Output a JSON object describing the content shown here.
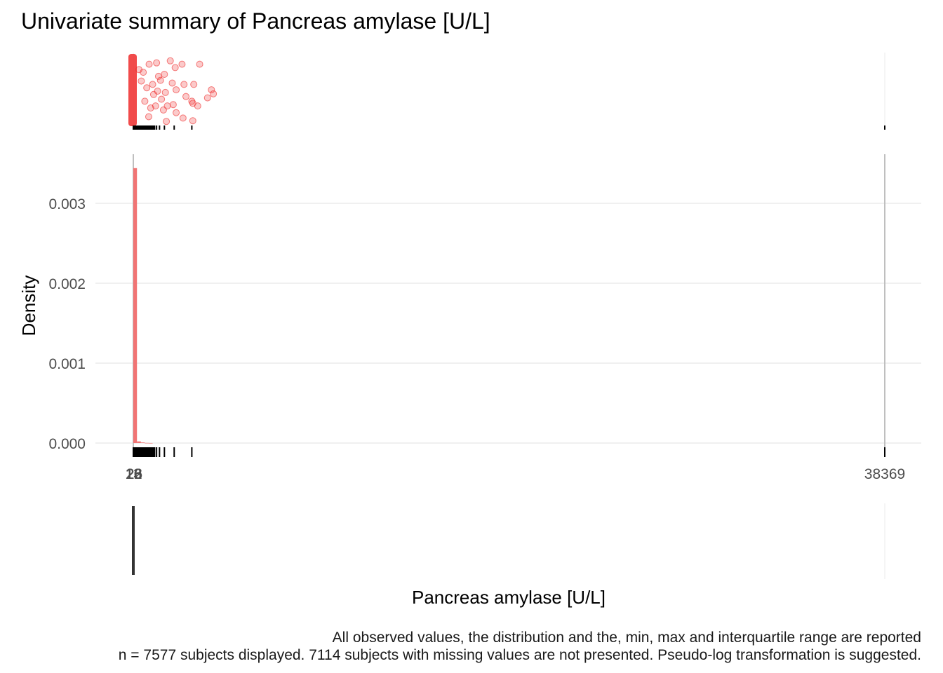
{
  "chart_data": {
    "type": "histogram",
    "title": "Univariate summary of Pancreas amylase [U/L]",
    "xlabel": "Pancreas amylase [U/L]",
    "ylabel": "Density",
    "x_tick_labels": [
      "13",
      "16",
      "22",
      "26",
      "38369"
    ],
    "x_range": [
      13,
      38369
    ],
    "ylim": [
      0,
      0.0036
    ],
    "y_ticks": [
      0.0,
      0.001,
      0.002,
      0.003
    ],
    "y_tick_labels": [
      "0.000",
      "0.001",
      "0.002",
      "0.003"
    ],
    "grid": true,
    "bars": [
      {
        "x0": 13,
        "x1": 200,
        "density": 0.00344
      },
      {
        "x0": 200,
        "x1": 400,
        "density": 2.06e-05
      },
      {
        "x0": 400,
        "x1": 600,
        "density": 7.6e-06
      },
      {
        "x0": 600,
        "x1": 800,
        "density": 1.4e-06
      },
      {
        "x0": 800,
        "x1": 1000,
        "density": 5e-07
      }
    ],
    "rug_values": [
      13,
      40,
      60,
      85,
      110,
      140,
      170,
      200,
      230,
      260,
      290,
      320,
      350,
      380,
      410,
      440,
      470,
      500,
      530,
      560,
      590,
      620,
      650,
      680,
      710,
      740,
      770,
      800,
      830,
      860,
      890,
      920,
      950,
      980,
      1010,
      1040,
      1100,
      1200,
      1350,
      1600,
      2100,
      3000,
      38369
    ],
    "scatter_points": [
      {
        "x": 300,
        "y": 0.82
      },
      {
        "x": 420,
        "y": 0.65
      },
      {
        "x": 520,
        "y": 0.78
      },
      {
        "x": 600,
        "y": 0.35
      },
      {
        "x": 700,
        "y": 0.55
      },
      {
        "x": 820,
        "y": 0.9
      },
      {
        "x": 900,
        "y": 0.25
      },
      {
        "x": 1000,
        "y": 0.6
      },
      {
        "x": 1050,
        "y": 0.45
      },
      {
        "x": 1150,
        "y": 0.28
      },
      {
        "x": 1250,
        "y": 0.5
      },
      {
        "x": 1300,
        "y": 0.72
      },
      {
        "x": 1450,
        "y": 0.38
      },
      {
        "x": 1600,
        "y": 0.75
      },
      {
        "x": 1650,
        "y": 0.48
      },
      {
        "x": 1750,
        "y": 0.28
      },
      {
        "x": 1900,
        "y": 0.95
      },
      {
        "x": 2000,
        "y": 0.62
      },
      {
        "x": 1200,
        "y": 0.92
      },
      {
        "x": 800,
        "y": 0.12
      },
      {
        "x": 1400,
        "y": 0.66
      },
      {
        "x": 1550,
        "y": 0.22
      },
      {
        "x": 2050,
        "y": 0.3
      },
      {
        "x": 2150,
        "y": 0.85
      },
      {
        "x": 2200,
        "y": 0.52
      },
      {
        "x": 2500,
        "y": 0.9
      },
      {
        "x": 2550,
        "y": 0.1
      },
      {
        "x": 2700,
        "y": 0.42
      },
      {
        "x": 3050,
        "y": 0.32
      },
      {
        "x": 3100,
        "y": 0.6
      },
      {
        "x": 3300,
        "y": 0.28
      },
      {
        "x": 3400,
        "y": 0.9
      },
      {
        "x": 3800,
        "y": 0.4
      },
      {
        "x": 4000,
        "y": 0.52
      },
      {
        "x": 4100,
        "y": 0.46
      },
      {
        "x": 2200,
        "y": 0.18
      },
      {
        "x": 3000,
        "y": 0.35
      },
      {
        "x": 1700,
        "y": 0.05
      },
      {
        "x": 2600,
        "y": 0.6
      },
      {
        "x": 3050,
        "y": 0.06
      }
    ],
    "scatter_color": "#ee2c2c",
    "bar_color": "#f17474",
    "minmax_line_color": "#bfbfbf",
    "boxplot_color": "#333333",
    "caption_lines": [
      "All observed values, the distribution and the, min, max and interquartile range are reported",
      "n = 7577 subjects displayed. 7114 subjects with missing values are not presented. Pseudo-log transformation is suggested."
    ]
  }
}
